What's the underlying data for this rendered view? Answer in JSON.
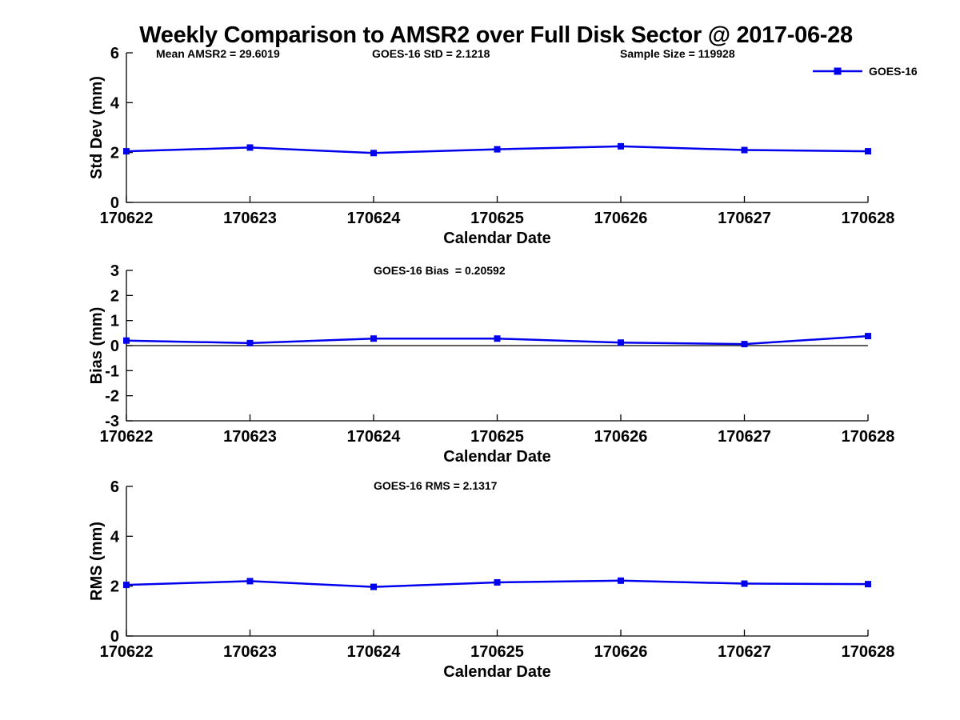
{
  "title": "Weekly Comparison to AMSR2 over Full Disk Sector @ 2017-06-28",
  "header_annotations": [
    {
      "id": "mean-amsr2",
      "label": "Mean AMSR2 = 29.6019"
    },
    {
      "id": "goes16-std",
      "label": "GOES-16 StD = 2.1218"
    },
    {
      "id": "sample-size",
      "label": "Sample Size = 119928"
    }
  ],
  "legend": {
    "label": "GOES-16",
    "position": "top-right",
    "marker": "square"
  },
  "colors": {
    "series": "#0000EE",
    "axis": "#000000",
    "zero_line": "#000000",
    "background": "#FFFFFF",
    "text": "#000000"
  },
  "chart_data": [
    {
      "type": "line",
      "name": "std-dev",
      "annotation": "",
      "xlabel": "Calendar Date",
      "ylabel": "Std Dev (mm)",
      "ylim": [
        0,
        6
      ],
      "yticks": [
        0,
        2,
        4,
        6
      ],
      "grid": false,
      "zero_line": false,
      "categories": [
        "170622",
        "170623",
        "170624",
        "170625",
        "170626",
        "170627",
        "170628"
      ],
      "series": [
        {
          "name": "GOES-16",
          "marker": "square",
          "values": [
            2.05,
            2.2,
            1.98,
            2.13,
            2.25,
            2.1,
            2.05
          ]
        }
      ]
    },
    {
      "type": "line",
      "name": "bias",
      "annotation": "GOES-16 Bias  = 0.20592",
      "xlabel": "Calendar Date",
      "ylabel": "Bias (mm)",
      "ylim": [
        -3,
        3
      ],
      "yticks": [
        -3,
        -2,
        -1,
        0,
        1,
        2,
        3
      ],
      "grid": false,
      "zero_line": true,
      "categories": [
        "170622",
        "170623",
        "170624",
        "170625",
        "170626",
        "170627",
        "170628"
      ],
      "series": [
        {
          "name": "GOES-16",
          "marker": "square",
          "values": [
            0.2,
            0.1,
            0.28,
            0.28,
            0.12,
            0.06,
            0.38
          ]
        }
      ]
    },
    {
      "type": "line",
      "name": "rms",
      "annotation": "GOES-16 RMS = 2.1317",
      "xlabel": "Calendar Date",
      "ylabel": "RMS (mm)",
      "ylim": [
        0,
        6
      ],
      "yticks": [
        0,
        2,
        4,
        6
      ],
      "grid": false,
      "zero_line": false,
      "categories": [
        "170622",
        "170623",
        "170624",
        "170625",
        "170626",
        "170627",
        "170628"
      ],
      "series": [
        {
          "name": "GOES-16",
          "marker": "square",
          "values": [
            2.05,
            2.2,
            1.97,
            2.15,
            2.22,
            2.1,
            2.08
          ]
        }
      ]
    }
  ]
}
